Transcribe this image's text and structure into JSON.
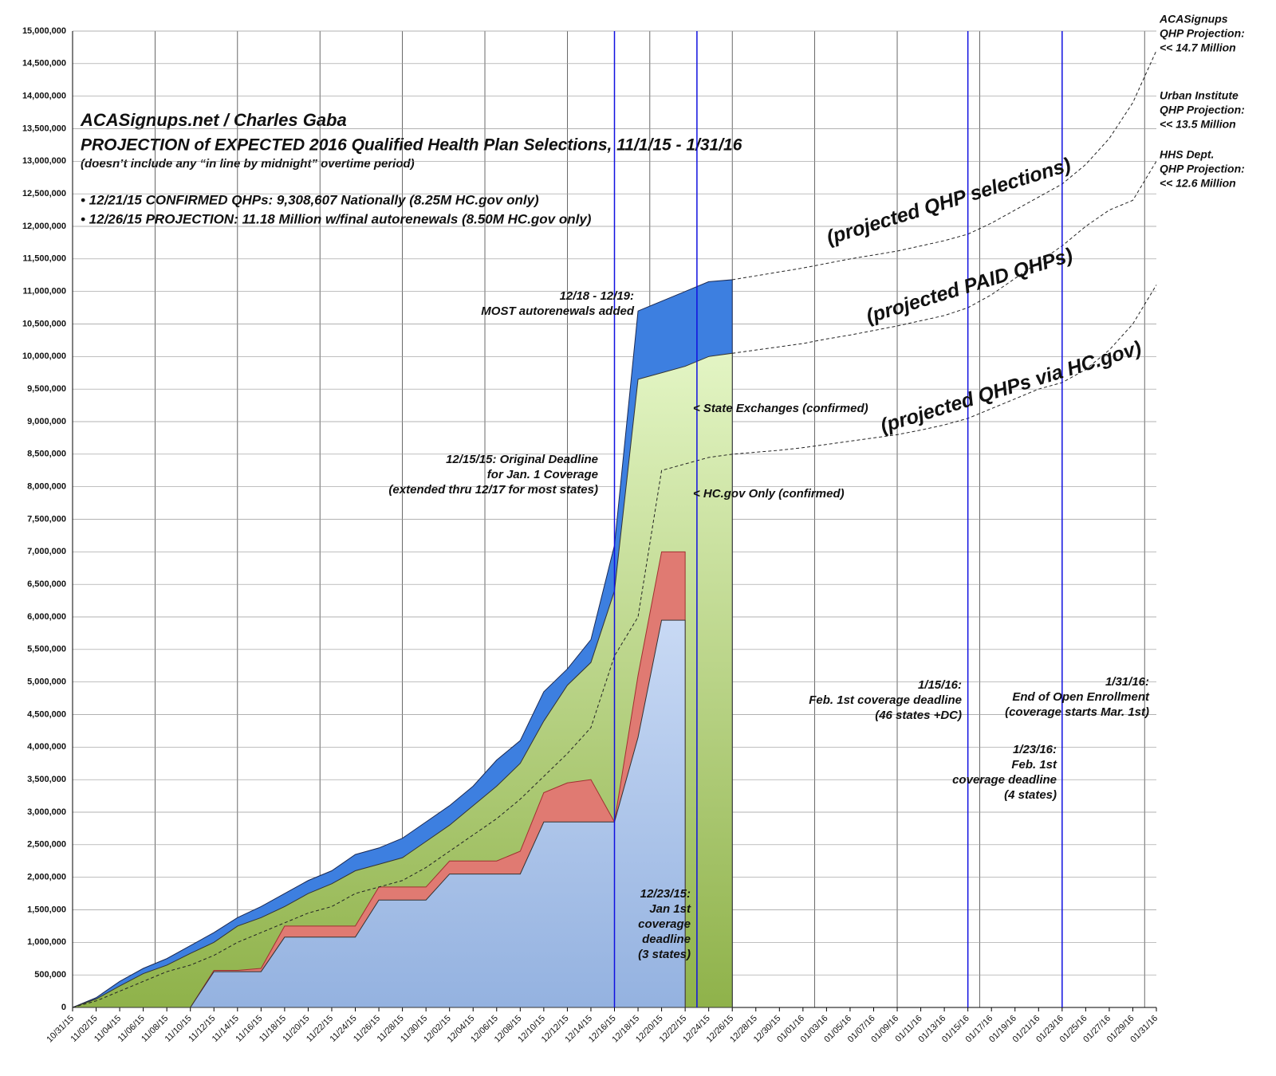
{
  "chart_data": {
    "type": "area",
    "title": "ACASignups.net / Charles Gaba",
    "subtitle": "PROJECTION of EXPECTED 2016 Qualified Health Plan Selections, 11/1/15 - 1/31/16",
    "note": "(doesn’t include any “in line by midnight” overtime period)",
    "highlights": [
      {
        "text": "• 12/21/15 CONFIRMED QHPs: 9,308,607 Nationally (8.25M HC.gov only)",
        "color": "#1a1ae6"
      },
      {
        "text": "• 12/26/15 PROJECTION: 11.18 Million w/final autorenewals (8.50M HC.gov only)",
        "color": "#e61a1a"
      }
    ],
    "categories": [
      "10/31/15",
      "11/02/15",
      "11/04/15",
      "11/06/15",
      "11/08/15",
      "11/10/15",
      "11/12/15",
      "11/14/15",
      "11/16/15",
      "11/18/15",
      "11/20/15",
      "11/22/15",
      "11/24/15",
      "11/26/15",
      "11/28/15",
      "11/30/15",
      "12/02/15",
      "12/04/15",
      "12/06/15",
      "12/08/15",
      "12/10/15",
      "12/12/15",
      "12/14/15",
      "12/16/15",
      "12/18/15",
      "12/20/15",
      "12/22/15",
      "12/24/15",
      "12/26/15",
      "12/28/15",
      "12/30/15",
      "01/01/16",
      "01/03/16",
      "01/05/16",
      "01/07/16",
      "01/09/16",
      "01/11/16",
      "01/13/16",
      "01/15/16",
      "01/17/16",
      "01/19/16",
      "01/21/16",
      "01/23/16",
      "01/25/16",
      "01/27/16",
      "01/29/16",
      "01/31/16"
    ],
    "series": [
      {
        "style": "area",
        "color": "#3d7fe0",
        "values": [
          0,
          150000,
          400000,
          600000,
          750000,
          950000,
          1150000,
          1380000,
          1550000,
          1750000,
          1950000,
          2100000,
          2350000,
          2450000,
          2600000,
          2850000,
          3100000,
          3400000,
          3800000,
          4100000,
          4850000,
          5200000,
          5650000,
          7100000,
          10700000,
          10850000,
          11000000,
          11150000,
          11180000,
          null,
          null,
          null,
          null,
          null,
          null,
          null,
          null,
          null,
          null,
          null,
          null,
          null,
          null,
          null,
          null,
          null,
          null
        ]
      },
      {
        "style": "area",
        "color": "#a8cc6a",
        "values": [
          0,
          130000,
          330000,
          520000,
          650000,
          830000,
          1000000,
          1250000,
          1380000,
          1550000,
          1750000,
          1900000,
          2100000,
          2200000,
          2300000,
          2550000,
          2800000,
          3100000,
          3400000,
          3750000,
          4400000,
          4950000,
          5300000,
          6400000,
          9650000,
          9750000,
          9850000,
          10000000,
          10050000,
          null,
          null,
          null,
          null,
          null,
          null,
          null,
          null,
          null,
          null,
          null,
          null,
          null,
          null,
          null,
          null,
          null,
          null
        ]
      },
      {
        "style": "area",
        "color": "#e07a72",
        "values": [
          0,
          0,
          0,
          0,
          0,
          0,
          570000,
          570000,
          600000,
          1250000,
          1250000,
          1250000,
          1250000,
          1850000,
          1850000,
          1850000,
          2250000,
          2250000,
          2250000,
          2400000,
          3300000,
          3450000,
          3500000,
          2850000,
          5100000,
          7000000,
          7000000,
          null,
          null,
          null,
          null,
          null,
          null,
          null,
          null,
          null,
          null,
          null,
          null,
          null,
          null,
          null,
          null,
          null,
          null,
          null,
          null
        ]
      },
      {
        "style": "area",
        "color": "#a9c0e8",
        "values": [
          0,
          0,
          0,
          0,
          0,
          0,
          550000,
          550000,
          550000,
          1080000,
          1080000,
          1080000,
          1080000,
          1650000,
          1650000,
          1650000,
          2050000,
          2050000,
          2050000,
          2050000,
          2850000,
          2850000,
          2850000,
          2850000,
          4150000,
          5950000,
          5950000,
          null,
          null,
          null,
          null,
          null,
          null,
          null,
          null,
          null,
          null,
          null,
          null,
          null,
          null,
          null,
          null,
          null,
          null,
          null,
          null
        ]
      },
      {
        "style": "dashed",
        "color": "#222222",
        "values": [
          0,
          100000,
          250000,
          400000,
          550000,
          650000,
          800000,
          1000000,
          1150000,
          1300000,
          1450000,
          1550000,
          1750000,
          1850000,
          1950000,
          2150000,
          2400000,
          2650000,
          2900000,
          3200000,
          3550000,
          3900000,
          4300000,
          5400000,
          6000000,
          8250000,
          8350000,
          8450000,
          8500000,
          8530000,
          8560000,
          8600000,
          8650000,
          8700000,
          8750000,
          8800000,
          8870000,
          8950000,
          9050000,
          9200000,
          9350000,
          9500000,
          9600000,
          9800000,
          10100000,
          10500000,
          11100000
        ]
      },
      {
        "style": "dashed",
        "color": "#222222",
        "values": [
          null,
          null,
          null,
          null,
          null,
          null,
          null,
          null,
          null,
          null,
          null,
          null,
          null,
          null,
          null,
          null,
          null,
          null,
          null,
          null,
          null,
          null,
          null,
          null,
          null,
          null,
          null,
          null,
          11180000,
          11240000,
          11300000,
          11360000,
          11430000,
          11500000,
          11560000,
          11620000,
          11700000,
          11780000,
          11880000,
          12050000,
          12250000,
          12450000,
          12650000,
          12950000,
          13350000,
          13900000,
          14700000
        ]
      },
      {
        "style": "dashed",
        "color": "#222222",
        "values": [
          null,
          null,
          null,
          null,
          null,
          null,
          null,
          null,
          null,
          null,
          null,
          null,
          null,
          null,
          null,
          null,
          null,
          null,
          null,
          null,
          null,
          null,
          null,
          null,
          null,
          null,
          null,
          null,
          10050000,
          10100000,
          10150000,
          10200000,
          10270000,
          10330000,
          10400000,
          10470000,
          10550000,
          10630000,
          10750000,
          10950000,
          11200000,
          11450000,
          11700000,
          12000000,
          12250000,
          12400000,
          13000000
        ]
      }
    ],
    "reference_lines": [
      {
        "x": "12/16/15"
      },
      {
        "x": "12/23/15"
      },
      {
        "x": "01/15/16"
      },
      {
        "x": "01/23/16"
      }
    ],
    "reference_color": "#1010e0",
    "ylim": [
      0,
      15000000
    ],
    "yticks": [
      0,
      {
        "value": 500000,
        "label": "500,000"
      },
      {
        "value": 1000000,
        "label": "1,000,000"
      },
      {
        "value": 1500000,
        "label": "1,500,000"
      },
      {
        "value": 2000000,
        "label": "2,000,000"
      },
      {
        "value": 2500000,
        "label": "2,500,000"
      },
      {
        "value": 3000000,
        "label": "3,000,000"
      },
      {
        "value": 3500000,
        "label": "3,500,000"
      },
      {
        "value": 4000000,
        "label": "4,000,000"
      },
      {
        "value": 4500000,
        "label": "4,500,000"
      },
      {
        "value": 5000000,
        "label": "5,000,000"
      },
      {
        "value": 5500000,
        "label": "5,500,000"
      },
      {
        "value": 6000000,
        "label": "6,000,000"
      },
      {
        "value": 6500000,
        "label": "6,500,000"
      },
      {
        "value": 7000000,
        "label": "7,000,000"
      },
      {
        "value": 7500000,
        "label": "7,500,000"
      },
      {
        "value": 8000000,
        "label": "8,000,000"
      },
      {
        "value": 8500000,
        "label": "8,500,000"
      },
      {
        "value": 9000000,
        "label": "9,000,000"
      },
      {
        "value": 9500000,
        "label": "9,500,000"
      },
      {
        "value": 10000000,
        "label": "10,000,000"
      },
      {
        "value": 10500000,
        "label": "10,500,000"
      },
      {
        "value": 11000000,
        "label": "11,000,000"
      },
      {
        "value": 11500000,
        "label": "11,500,000"
      },
      {
        "value": 12000000,
        "label": "12,000,000"
      },
      {
        "value": 12500000,
        "label": "12,500,000"
      },
      {
        "value": 13000000,
        "label": "13,000,000"
      },
      {
        "value": 13500000,
        "label": "13,500,000"
      },
      {
        "value": 14000000,
        "label": "14,000,000"
      },
      {
        "value": 14500000,
        "label": "14,500,000"
      },
      {
        "value": 15000000,
        "label": "15,000,000"
      }
    ],
    "grid": true,
    "annotations": [
      {
        "lines": [
          "12/18 - 12/19:",
          "MOST autorenewals added"
        ]
      },
      {
        "lines": [
          "12/15/15: Original Deadline",
          "for Jan. 1 Coverage",
          "(extended thru 12/17 for most states)"
        ]
      },
      {
        "lines": [
          "< State Exchanges (confirmed)"
        ]
      },
      {
        "lines": [
          "< HC.gov Only (confirmed)"
        ]
      },
      {
        "lines": [
          "12/23/15:",
          "Jan 1st",
          "coverage",
          "deadline",
          "(3 states)"
        ]
      },
      {
        "lines": [
          "1/15/16:",
          "Feb. 1st coverage deadline",
          "(46 states +DC)"
        ]
      },
      {
        "lines": [
          "1/23/16:",
          "Feb. 1st",
          "coverage deadline",
          "(4 states)"
        ]
      },
      {
        "lines": [
          "1/31/16:",
          "End of Open Enrollment",
          "(coverage starts Mar. 1st)"
        ]
      }
    ],
    "projection_labels": [
      "(projected QHP selections)",
      "(projected PAID QHPs)",
      "(projected QHPs via HC.gov)"
    ],
    "side_notes": [
      {
        "lines": [
          "ACASignups",
          "QHP Projection:",
          "<< 14.7 Million"
        ]
      },
      {
        "lines": [
          "Urban Institute",
          "QHP Projection:",
          "<< 13.5 Million"
        ]
      },
      {
        "lines": [
          "HHS Dept.",
          "QHP Projection:",
          "<< 12.6 Million"
        ]
      }
    ]
  }
}
